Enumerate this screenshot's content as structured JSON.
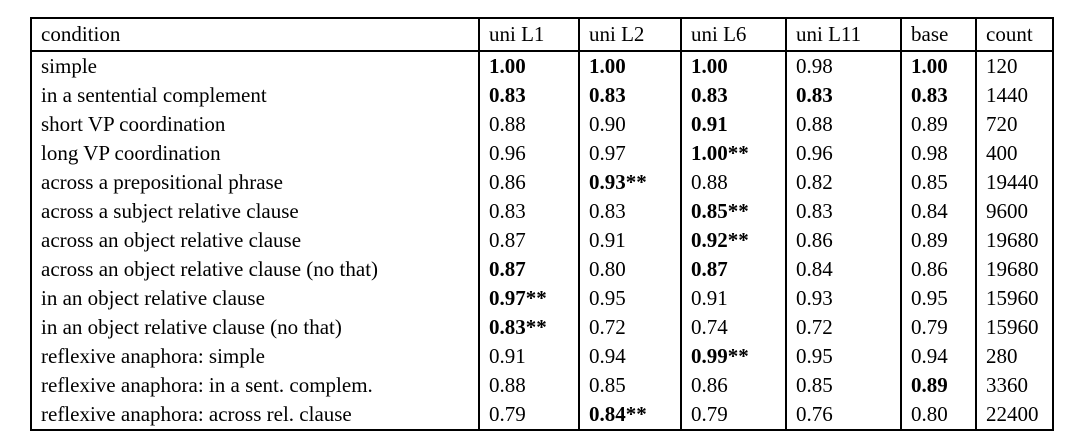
{
  "table": {
    "columns": [
      "condition",
      "uni L1",
      "uni L2",
      "uni L6",
      "uni L11",
      "base",
      "count"
    ],
    "rows": [
      {
        "condition": "simple",
        "values": [
          {
            "text": "1.00",
            "bold": true
          },
          {
            "text": "1.00",
            "bold": true
          },
          {
            "text": "1.00",
            "bold": true
          },
          {
            "text": "0.98",
            "bold": false
          },
          {
            "text": "1.00",
            "bold": true
          },
          {
            "text": "120",
            "bold": false
          }
        ]
      },
      {
        "condition": "in a sentential complement",
        "values": [
          {
            "text": "0.83",
            "bold": true
          },
          {
            "text": "0.83",
            "bold": true
          },
          {
            "text": "0.83",
            "bold": true
          },
          {
            "text": "0.83",
            "bold": true
          },
          {
            "text": "0.83",
            "bold": true
          },
          {
            "text": "1440",
            "bold": false
          }
        ]
      },
      {
        "condition": "short VP coordination",
        "values": [
          {
            "text": "0.88",
            "bold": false
          },
          {
            "text": "0.90",
            "bold": false
          },
          {
            "text": "0.91",
            "bold": true
          },
          {
            "text": "0.88",
            "bold": false
          },
          {
            "text": "0.89",
            "bold": false
          },
          {
            "text": "720",
            "bold": false
          }
        ]
      },
      {
        "condition": "long VP coordination",
        "values": [
          {
            "text": "0.96",
            "bold": false
          },
          {
            "text": "0.97",
            "bold": false
          },
          {
            "text": "1.00**",
            "bold": true
          },
          {
            "text": "0.96",
            "bold": false
          },
          {
            "text": "0.98",
            "bold": false
          },
          {
            "text": "400",
            "bold": false
          }
        ]
      },
      {
        "condition": "across a prepositional phrase",
        "values": [
          {
            "text": "0.86",
            "bold": false
          },
          {
            "text": "0.93**",
            "bold": true
          },
          {
            "text": "0.88",
            "bold": false
          },
          {
            "text": "0.82",
            "bold": false
          },
          {
            "text": "0.85",
            "bold": false
          },
          {
            "text": "19440",
            "bold": false
          }
        ]
      },
      {
        "condition": "across a subject relative clause",
        "values": [
          {
            "text": "0.83",
            "bold": false
          },
          {
            "text": "0.83",
            "bold": false
          },
          {
            "text": "0.85**",
            "bold": true
          },
          {
            "text": "0.83",
            "bold": false
          },
          {
            "text": "0.84",
            "bold": false
          },
          {
            "text": "9600",
            "bold": false
          }
        ]
      },
      {
        "condition": "across an object relative clause",
        "values": [
          {
            "text": "0.87",
            "bold": false
          },
          {
            "text": "0.91",
            "bold": false
          },
          {
            "text": "0.92**",
            "bold": true
          },
          {
            "text": "0.86",
            "bold": false
          },
          {
            "text": "0.89",
            "bold": false
          },
          {
            "text": "19680",
            "bold": false
          }
        ]
      },
      {
        "condition": "across an object relative clause (no that)",
        "values": [
          {
            "text": "0.87",
            "bold": true
          },
          {
            "text": "0.80",
            "bold": false
          },
          {
            "text": "0.87",
            "bold": true
          },
          {
            "text": "0.84",
            "bold": false
          },
          {
            "text": "0.86",
            "bold": false
          },
          {
            "text": "19680",
            "bold": false
          }
        ]
      },
      {
        "condition": "in an object relative clause",
        "values": [
          {
            "text": "0.97**",
            "bold": true
          },
          {
            "text": "0.95",
            "bold": false
          },
          {
            "text": "0.91",
            "bold": false
          },
          {
            "text": "0.93",
            "bold": false
          },
          {
            "text": "0.95",
            "bold": false
          },
          {
            "text": "15960",
            "bold": false
          }
        ]
      },
      {
        "condition": "in an object relative clause (no that)",
        "values": [
          {
            "text": "0.83**",
            "bold": true
          },
          {
            "text": "0.72",
            "bold": false
          },
          {
            "text": "0.74",
            "bold": false
          },
          {
            "text": "0.72",
            "bold": false
          },
          {
            "text": "0.79",
            "bold": false
          },
          {
            "text": "15960",
            "bold": false
          }
        ]
      },
      {
        "condition": "reflexive anaphora: simple",
        "values": [
          {
            "text": "0.91",
            "bold": false
          },
          {
            "text": "0.94",
            "bold": false
          },
          {
            "text": "0.99**",
            "bold": true
          },
          {
            "text": "0.95",
            "bold": false
          },
          {
            "text": "0.94",
            "bold": false
          },
          {
            "text": "280",
            "bold": false
          }
        ]
      },
      {
        "condition": "reflexive anaphora: in a sent. complem.",
        "values": [
          {
            "text": "0.88",
            "bold": false
          },
          {
            "text": "0.85",
            "bold": false
          },
          {
            "text": "0.86",
            "bold": false
          },
          {
            "text": "0.85",
            "bold": false
          },
          {
            "text": "0.89",
            "bold": true
          },
          {
            "text": "3360",
            "bold": false
          }
        ]
      },
      {
        "condition": "reflexive anaphora: across rel. clause",
        "values": [
          {
            "text": "0.79",
            "bold": false
          },
          {
            "text": "0.84**",
            "bold": true
          },
          {
            "text": "0.79",
            "bold": false
          },
          {
            "text": "0.76",
            "bold": false
          },
          {
            "text": "0.80",
            "bold": false
          },
          {
            "text": "22400",
            "bold": false
          }
        ]
      }
    ]
  }
}
